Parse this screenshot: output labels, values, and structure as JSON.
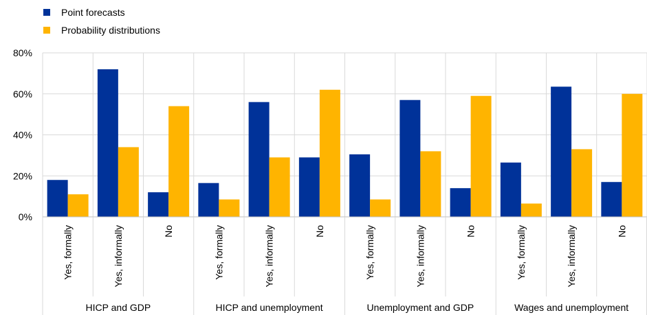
{
  "chart_data": {
    "type": "bar",
    "groups": [
      {
        "name": "HICP and GDP",
        "categories": [
          "Yes, formally",
          "Yes, informally",
          "No"
        ]
      },
      {
        "name": "HICP and unemployment",
        "categories": [
          "Yes, formally",
          "Yes, informally",
          "No"
        ]
      },
      {
        "name": "Unemployment and GDP",
        "categories": [
          "Yes, formally",
          "Yes, informally",
          "No"
        ]
      },
      {
        "name": "Wages and unemployment",
        "categories": [
          "Yes, formally",
          "Yes, informally",
          "No"
        ]
      }
    ],
    "series": [
      {
        "name": "Point forecasts",
        "color": "#003299",
        "values": [
          18,
          72,
          12,
          16.5,
          56,
          29,
          30.5,
          57,
          14,
          26.5,
          63.5,
          17
        ]
      },
      {
        "name": "Probability distributions",
        "color": "#FFB400",
        "values": [
          11,
          34,
          54,
          8.5,
          29,
          62,
          8.5,
          32,
          59,
          6.5,
          33,
          60
        ]
      }
    ],
    "yticks": [
      "0%",
      "20%",
      "40%",
      "60%",
      "80%"
    ],
    "ylim": [
      0,
      80
    ],
    "legend_position": "top-left",
    "grid": true
  }
}
